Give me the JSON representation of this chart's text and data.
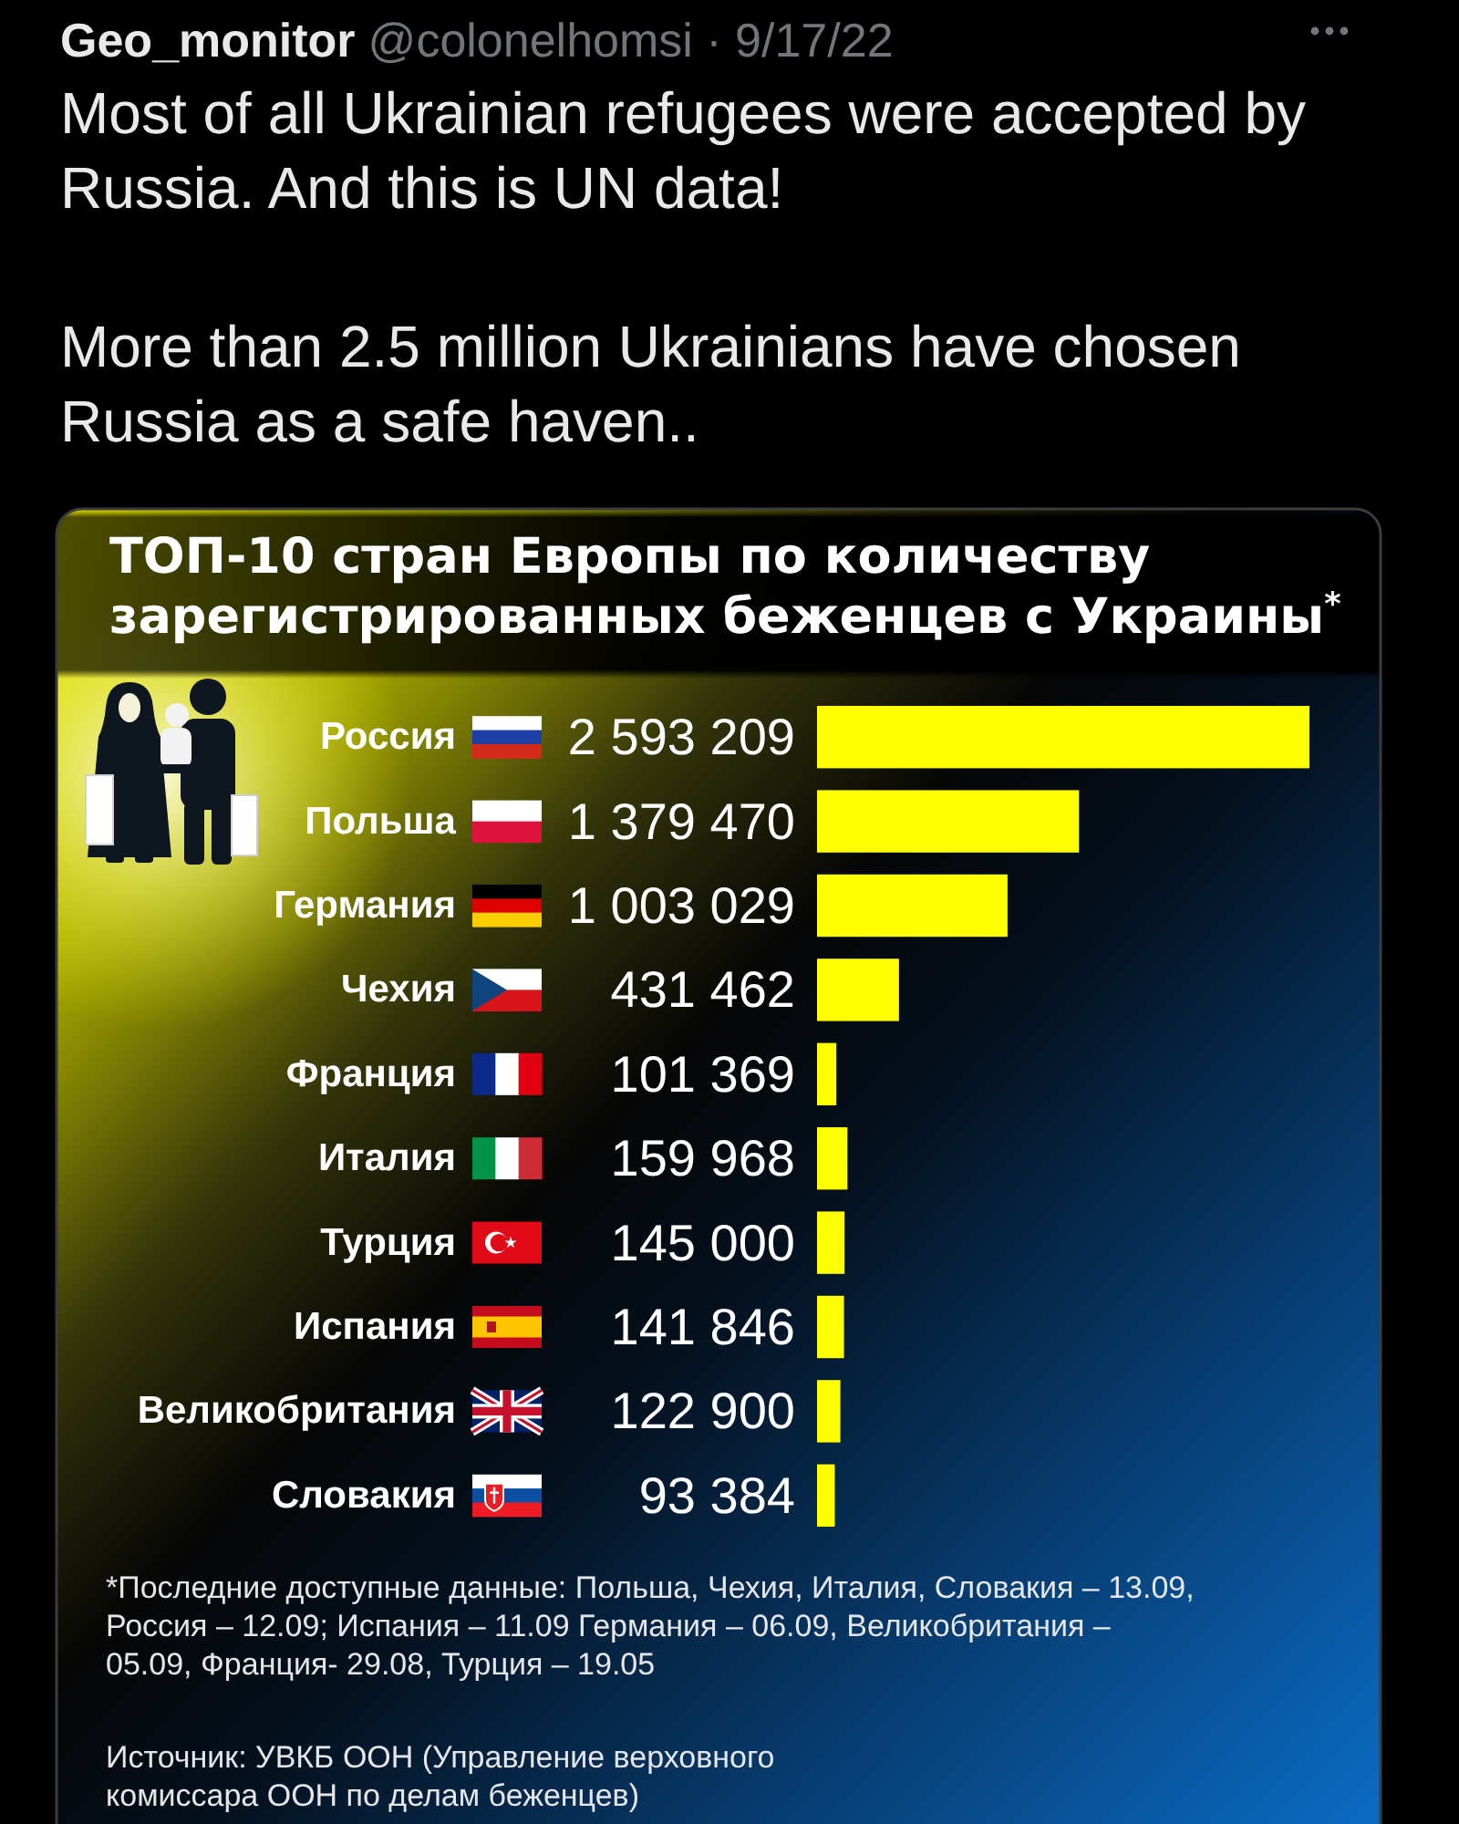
{
  "chart_data": {
    "type": "bar",
    "orientation": "horizontal",
    "title": "ТОП-10 стран Европы по количеству зарегистрированных беженцев с Украины$^{*}$",
    "categories": [
      "Россия",
      "Польша",
      "Германия",
      "Чехия",
      "Франция",
      "Италия",
      "Турция",
      "Испания",
      "Великобритания",
      "Словакия"
    ],
    "values": [
      2593209,
      1379470,
      1003029,
      431462,
      101369,
      159968,
      145000,
      141846,
      122900,
      93384
    ],
    "value_labels": [
      "2 593 209",
      "1 379 470",
      "1 003 029",
      "431 462",
      "101 369",
      "159 968",
      "145 000",
      "141 846",
      "122 900",
      "93 384"
    ],
    "color": "#ffff00",
    "annotations": [
      "Geo_monitor @colonelhomsi · 9/17/22",
      "Most of all Ukrainian refugees were accepted by Russia. And this is UN data!",
      "More than 2.5 million Ukrainians have chosen Russia as a safe haven..",
      "*Последние доступные данные: Польша, Чехия, Италия, Словакия – 13.09, Россия – 12.09; Испания – 11.09 Германия – 06.09, Великобритания – 05.09, Франция- 29.08, Турция – 19.05",
      "Источник: УВКБ ООН (Управление верховного комиссара ООН по делам беженцев)"
    ]
  }
}
